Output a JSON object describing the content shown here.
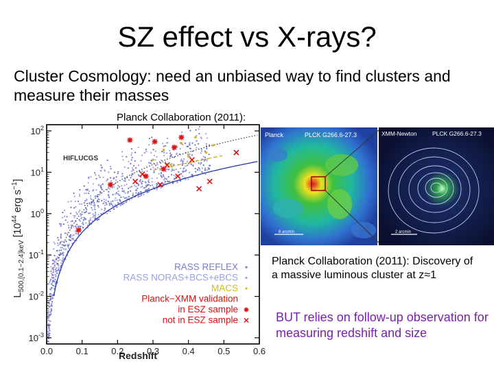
{
  "slide": {
    "title": "SZ effect vs X-rays?",
    "subtitle": "Cluster Cosmology: need an unbiased way to find clusters and measure their masses",
    "caption_top": "Planck Collaboration (2011):",
    "description": "Planck Collaboration (2011): Discovery of a massive luminous cluster at z≈1",
    "note": "BUT relies on follow-up observation for measuring redshift and size"
  },
  "chart_data": {
    "type": "scatter",
    "xlabel": "Redshift",
    "ylabel": "L500,[0.1-2.4]keV [10^44 erg s^-1]",
    "xlim": [
      0.0,
      0.6
    ],
    "ylim_log10": [
      -3.15,
      2.15
    ],
    "x_ticks": [
      "0.0",
      "0.1",
      "0.2",
      "0.3",
      "0.4",
      "0.5",
      "0.6"
    ],
    "y_ticks": [
      {
        "base": "10",
        "exp": "2",
        "v": 2
      },
      {
        "base": "10",
        "exp": "1",
        "v": 1
      },
      {
        "base": "10",
        "exp": "0",
        "v": 0
      },
      {
        "base": "10",
        "exp": "-1",
        "v": -1
      },
      {
        "base": "10",
        "exp": "-2",
        "v": -2
      },
      {
        "base": "10",
        "exp": "-3",
        "v": -3
      }
    ],
    "annotation": "HIFLUCGS",
    "legend": [
      {
        "label": "RASS REFLEX",
        "color": "#7a7ad0"
      },
      {
        "label": "RASS NORAS+BCS+eBCS",
        "color": "#9aa0e0"
      },
      {
        "label": "MACS",
        "color": "#d8c000"
      },
      {
        "label": "Planck−XMM validation",
        "color": "#dd1010"
      },
      {
        "label": "in ESZ sample",
        "color": "#dd1010"
      },
      {
        "label": "not in ESZ sample",
        "color": "#dd1010"
      }
    ],
    "series": [
      {
        "name": "in ESZ sample",
        "marker": "asterisk",
        "color": "#dd1010",
        "x": [
          0.09,
          0.18,
          0.235,
          0.28,
          0.305,
          0.33,
          0.36,
          0.38
        ],
        "y": [
          0.4,
          5.0,
          60.0,
          8.0,
          55.0,
          12.0,
          40.0,
          70.0
        ]
      },
      {
        "name": "not in ESZ sample",
        "marker": "x",
        "color": "#dd1010",
        "x": [
          0.25,
          0.27,
          0.32,
          0.34,
          0.37,
          0.41,
          0.43,
          0.46,
          0.535
        ],
        "y": [
          6.0,
          9.0,
          5.0,
          15.0,
          8.0,
          20.0,
          4.0,
          6.0,
          30.0
        ]
      },
      {
        "name": "MACS",
        "marker": "dot",
        "color": "#d8c000",
        "x": [
          0.3,
          0.33,
          0.35,
          0.38,
          0.4,
          0.42,
          0.45,
          0.47
        ],
        "y": [
          20.0,
          35.0,
          15.0,
          50.0,
          25.0,
          70.0,
          30.0,
          45.0
        ]
      }
    ]
  },
  "planck_map": {
    "left_label": "Planck",
    "left_id": "PLCK G266.6-27.3",
    "left_scale": "8 arcmin",
    "right_label": "XMM-Newton",
    "right_id": "PLCK G266.6-27.3",
    "right_scale": "2 arcmin"
  }
}
